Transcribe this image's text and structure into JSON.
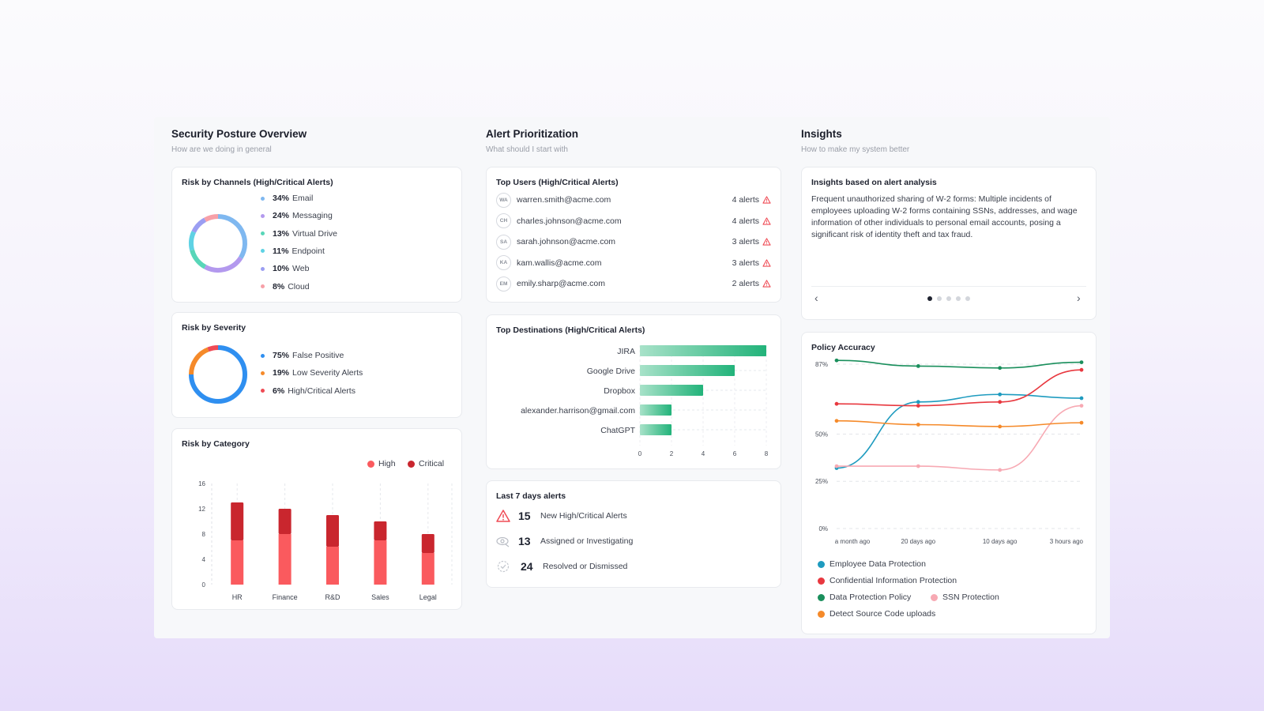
{
  "posture": {
    "title": "Security Posture Overview",
    "subtitle": "How are we doing in general",
    "channels": {
      "title": "Risk by Channels (High/Critical Alerts)",
      "items": [
        {
          "pct": "34%",
          "label": "Email",
          "color": "#7fb8f0"
        },
        {
          "pct": "24%",
          "label": "Messaging",
          "color": "#b399ee"
        },
        {
          "pct": "13%",
          "label": "Virtual Drive",
          "color": "#58d6b8"
        },
        {
          "pct": "11%",
          "label": "Endpoint",
          "color": "#5fd2e4"
        },
        {
          "pct": "10%",
          "label": "Web",
          "color": "#9b9ef2"
        },
        {
          "pct": "8%",
          "label": "Cloud",
          "color": "#f7a0a8"
        }
      ],
      "values": [
        34,
        24,
        13,
        11,
        10,
        8
      ]
    },
    "severity": {
      "title": "Risk by Severity",
      "items": [
        {
          "pct": "75%",
          "label": "False Positive",
          "color": "#2f8ff0"
        },
        {
          "pct": "19%",
          "label": "Low Severity Alerts",
          "color": "#f58a2a"
        },
        {
          "pct": "6%",
          "label": "High/Critical Alerts",
          "color": "#ef4b55"
        }
      ],
      "values": [
        75,
        19,
        6
      ]
    },
    "category": {
      "title": "Risk by Category",
      "legend_high": "High",
      "legend_critical": "Critical",
      "high_color": "#fa5a5e",
      "critical_color": "#c9262e"
    }
  },
  "prioritization": {
    "title": "Alert Prioritization",
    "subtitle": "What should I start with",
    "top_users": {
      "title": "Top Users (High/Critical Alerts)",
      "users": [
        {
          "initials": "WA",
          "email": "warren.smith@acme.com",
          "alerts": "4 alerts"
        },
        {
          "initials": "CH",
          "email": "charles.johnson@acme.com",
          "alerts": "4 alerts"
        },
        {
          "initials": "SA",
          "email": "sarah.johnson@acme.com",
          "alerts": "3 alerts"
        },
        {
          "initials": "KA",
          "email": "kam.wallis@acme.com",
          "alerts": "3 alerts"
        },
        {
          "initials": "EM",
          "email": "emily.sharp@acme.com",
          "alerts": "2 alerts"
        }
      ]
    },
    "destinations": {
      "title": "Top Destinations (High/Critical Alerts)"
    },
    "last7": {
      "title": "Last 7 days alerts",
      "rows": [
        {
          "num": "15",
          "label": "New High/Critical Alerts"
        },
        {
          "num": "13",
          "label": "Assigned or Investigating"
        },
        {
          "num": "24",
          "label": "Resolved or Dismissed"
        }
      ]
    }
  },
  "insights": {
    "title": "Insights",
    "subtitle": "How to make my system better",
    "analysis": {
      "title": "Insights based on alert analysis",
      "text": "Frequent unauthorized sharing of W-2 forms: Multiple incidents of employees uploading W-2 forms containing SSNs, addresses, and wage information of other individuals to personal email accounts, posing a significant risk of identity theft and tax fraud.",
      "prev": "‹",
      "next": "›"
    },
    "policy": {
      "title": "Policy Accuracy",
      "legend": [
        {
          "label": "Employee Data Protection",
          "color": "#1e9bbf"
        },
        {
          "label": "Confidential Information Protection",
          "color": "#e8383f"
        },
        {
          "label": "Data Protection Policy",
          "color": "#1a8f5c"
        },
        {
          "label": "SSN Protection",
          "color": "#f7a9b3"
        },
        {
          "label": "Detect Source Code uploads",
          "color": "#f58a2a"
        }
      ]
    }
  },
  "chart_data": [
    {
      "type": "bar",
      "title": "Risk by Category",
      "categories": [
        "HR",
        "Finance",
        "R&D",
        "Sales",
        "Legal"
      ],
      "series": [
        {
          "name": "High",
          "values": [
            7,
            8,
            6,
            7,
            5
          ]
        },
        {
          "name": "Critical",
          "values": [
            6,
            4,
            5,
            3,
            3
          ]
        }
      ],
      "stacked": true,
      "yticks": [
        "0",
        "4",
        "8",
        "12",
        "16"
      ],
      "ylim": [
        0,
        16
      ]
    },
    {
      "type": "bar",
      "orientation": "horizontal",
      "title": "Top Destinations (High/Critical Alerts)",
      "categories": [
        "JIRA",
        "Google Drive",
        "Dropbox",
        "alexander.harrison@gmail.com",
        "ChatGPT"
      ],
      "values": [
        8,
        6,
        4,
        2,
        2
      ],
      "xticks": [
        "0",
        "2",
        "4",
        "6",
        "8"
      ],
      "xlim": [
        0,
        8
      ]
    },
    {
      "type": "line",
      "title": "Policy Accuracy",
      "x": [
        "a month ago",
        "20 days ago",
        "10 days ago",
        "3 hours ago"
      ],
      "yticks": [
        "0%",
        "25%",
        "50%",
        "87%"
      ],
      "ylim": [
        0,
        87
      ],
      "series": [
        {
          "name": "Employee Data Protection",
          "values": [
            32,
            67,
            71,
            69
          ],
          "color": "#1e9bbf"
        },
        {
          "name": "Confidential Information Protection",
          "values": [
            66,
            65,
            67,
            84
          ],
          "color": "#e8383f"
        },
        {
          "name": "Data Protection Policy",
          "values": [
            89,
            86,
            85,
            88
          ],
          "color": "#1a8f5c"
        },
        {
          "name": "SSN Protection",
          "values": [
            33,
            33,
            31,
            65
          ],
          "color": "#f7a9b3"
        },
        {
          "name": "Detect Source Code uploads",
          "values": [
            57,
            55,
            54,
            56
          ],
          "color": "#f58a2a"
        }
      ]
    }
  ]
}
